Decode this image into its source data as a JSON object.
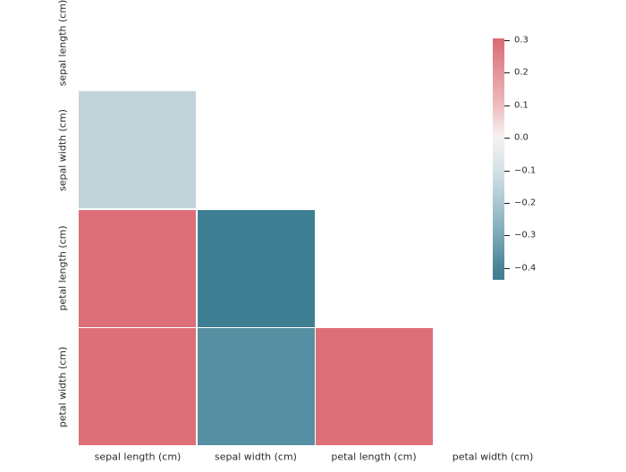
{
  "chart_data": {
    "type": "heatmap",
    "subtype": "correlation-matrix-lower-triangle",
    "title": "",
    "categories": [
      "sepal length (cm)",
      "sepal width (cm)",
      "petal length (cm)",
      "petal width (cm)"
    ],
    "grid": false,
    "legend_position": "colorbar-right",
    "cells": [
      {
        "row_index": 1,
        "col_index": 0,
        "row": "sepal width (cm)",
        "col": "sepal length (cm)",
        "value": -0.12,
        "color": "#c2d4da"
      },
      {
        "row_index": 2,
        "col_index": 0,
        "row": "petal length (cm)",
        "col": "sepal length (cm)",
        "value": 0.3,
        "color": "#dc6f77"
      },
      {
        "row_index": 2,
        "col_index": 1,
        "row": "petal length (cm)",
        "col": "sepal width (cm)",
        "value": -0.43,
        "color": "#3f7f93"
      },
      {
        "row_index": 3,
        "col_index": 0,
        "row": "petal width (cm)",
        "col": "sepal length (cm)",
        "value": 0.3,
        "color": "#dc6f77"
      },
      {
        "row_index": 3,
        "col_index": 1,
        "row": "petal width (cm)",
        "col": "sepal width (cm)",
        "value": -0.37,
        "color": "#578fa2"
      },
      {
        "row_index": 3,
        "col_index": 2,
        "row": "petal width (cm)",
        "col": "petal length (cm)",
        "value": 0.3,
        "color": "#dc6f77"
      }
    ],
    "colorbar": {
      "tick_labels": [
        "0.3",
        "0.2",
        "0.1",
        "0.0",
        "−0.1",
        "−0.2",
        "−0.3",
        "−0.4"
      ],
      "vmax_color": "#d96a72",
      "mid_color": "#f6f2f1",
      "vmin_color": "#3e7d91",
      "value_range_top": 0.3,
      "value_range_bottom": -0.44
    }
  }
}
